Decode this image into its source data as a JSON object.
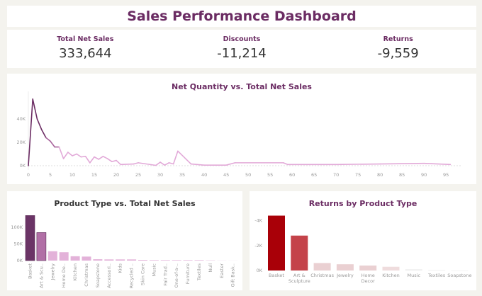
{
  "dashboard": {
    "title": "Sales Performance Dashboard"
  },
  "kpis": [
    {
      "label": "Total Net Sales",
      "value": "333,644"
    },
    {
      "label": "Discounts",
      "value": "-11,214"
    },
    {
      "label": "Returns",
      "value": "-9,559"
    }
  ],
  "colors": {
    "title": "#6b2c63",
    "line_dark": "#6b2c63",
    "line_light": "#e2a9d8",
    "returns_dark": "#a90008",
    "returns_light": "#ead0d2"
  },
  "chart_data": [
    {
      "type": "line",
      "title": "Net Quantity vs. Total Net Sales",
      "xlabel": "",
      "ylabel": "",
      "xlim": [
        0,
        97
      ],
      "ylim": [
        0,
        60000
      ],
      "x_ticks": [
        0,
        5,
        10,
        15,
        20,
        25,
        30,
        35,
        40,
        45,
        50,
        55,
        60,
        65,
        70,
        75,
        80,
        85,
        90,
        95
      ],
      "y_ticks": [
        {
          "v": 0,
          "label": "0K"
        },
        {
          "v": 20000,
          "label": "20K"
        },
        {
          "v": 40000,
          "label": "40K"
        }
      ],
      "x": [
        0,
        1,
        2,
        3,
        4,
        5,
        6,
        7,
        8,
        9,
        10,
        11,
        12,
        13,
        14,
        15,
        16,
        17,
        18,
        19,
        20,
        21,
        24,
        25,
        29,
        30,
        31,
        32,
        33,
        34,
        37,
        40,
        45,
        47,
        58,
        59,
        70,
        80,
        90,
        96
      ],
      "y": [
        0,
        57000,
        40000,
        31000,
        24000,
        21000,
        16000,
        16000,
        6000,
        11500,
        8500,
        10000,
        7500,
        8000,
        2500,
        7500,
        5500,
        8000,
        6000,
        3500,
        4500,
        1000,
        1500,
        2500,
        300,
        3000,
        500,
        2500,
        1500,
        12500,
        1500,
        500,
        500,
        2500,
        2500,
        1000,
        1000,
        1500,
        2000,
        1000
      ]
    },
    {
      "type": "bar",
      "title": "Product Type vs. Total Net Sales",
      "ylim": [
        0,
        140000
      ],
      "y_ticks": [
        {
          "v": 0,
          "label": "0K"
        },
        {
          "v": 50000,
          "label": "50K"
        },
        {
          "v": 100000,
          "label": "100K"
        }
      ],
      "categories": [
        "Basket",
        "Art & Scu..",
        "Jewelry",
        "Home De..",
        "Kitchen",
        "Christmas",
        "Soapstone",
        "Accessori..",
        "Kids",
        "Recycled ..",
        "Skin Care",
        "Music",
        "Fair Trad..",
        "One-of-a-..",
        "Furniture",
        "Textiles",
        "Null",
        "Easter",
        "Gift Bask.."
      ],
      "values": [
        135000,
        84000,
        28000,
        25000,
        13000,
        12000,
        4000,
        3500,
        3500,
        3500,
        2000,
        1500,
        1500,
        1500,
        1500,
        1500,
        800,
        300,
        200
      ]
    },
    {
      "type": "bar",
      "title": "Returns by Product Type",
      "ylim": [
        0,
        -4600
      ],
      "axis_reversed": true,
      "y_ticks": [
        {
          "v": 0,
          "label": "0K"
        },
        {
          "v": -2000,
          "label": "-2K"
        },
        {
          "v": -4000,
          "label": "-4K"
        }
      ],
      "categories": [
        [
          "Basket"
        ],
        [
          "Art &",
          "Sculpture"
        ],
        [
          "Christmas"
        ],
        [
          "Jewelry"
        ],
        [
          "Home",
          "Decor"
        ],
        [
          "Kitchen"
        ],
        [
          "Music"
        ],
        [
          "Textiles"
        ],
        [
          "Soapstone"
        ]
      ],
      "values": [
        -4400,
        -2800,
        -600,
        -500,
        -400,
        -300,
        -100,
        -50,
        -20
      ]
    }
  ]
}
